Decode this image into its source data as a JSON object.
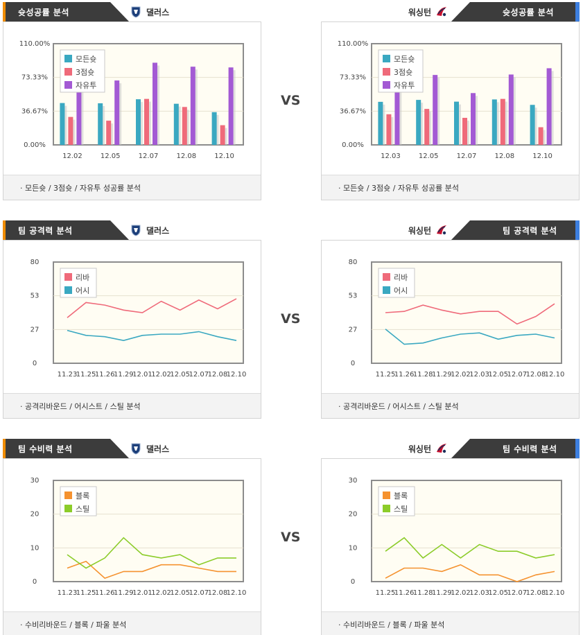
{
  "vs_label": "VS",
  "team_left": "댈러스",
  "team_right": "워싱턴",
  "colors": {
    "tab_bg": "#3c3c3c",
    "accent_left": "#f08c00",
    "accent_right": "#3d7fe0",
    "plot_bg": "#fffdf3",
    "all_shot": "#3aa8c1",
    "three_pt": "#ef6a7a",
    "free_throw": "#a35ad4",
    "rebound": "#ef6a7a",
    "assist": "#3aa8c1",
    "block": "#f5922f",
    "steal": "#8ccc2a"
  },
  "sections": [
    {
      "title": "슛성공률 분석",
      "caption": "·  모든슛 / 3점슛 / 자유투 성공률 분석",
      "charts": [
        {
          "chart_data": {
            "type": "bar",
            "categories": [
              "12.02",
              "12.05",
              "12.07",
              "12.08",
              "12.10"
            ],
            "yticks": [
              "0.00%",
              "36.67%",
              "73.33%",
              "110.00%"
            ],
            "ylim": [
              0,
              110
            ],
            "legend": "top-left",
            "series": [
              {
                "name": "모든슛",
                "color_key": "all_shot",
                "values": [
                  45.5,
                  45.2,
                  49.6,
                  44.7,
                  35.6
                ]
              },
              {
                "name": "3점슛",
                "color_key": "three_pt",
                "values": [
                  30.4,
                  26.3,
                  50.0,
                  41.2,
                  21.4
                ]
              },
              {
                "name": "자유투",
                "color_key": "free_throw",
                "values": [
                  62.5,
                  70.0,
                  89.3,
                  85.0,
                  84.2
                ]
              }
            ]
          }
        },
        {
          "chart_data": {
            "type": "bar",
            "categories": [
              "12.03",
              "12.05",
              "12.07",
              "12.08",
              "12.10"
            ],
            "yticks": [
              "0.00%",
              "36.67%",
              "73.33%",
              "110.00%"
            ],
            "ylim": [
              0,
              110
            ],
            "legend": "top-left",
            "series": [
              {
                "name": "모든슛",
                "color_key": "all_shot",
                "values": [
                  46.8,
                  48.9,
                  47.0,
                  49.4,
                  43.5
                ]
              },
              {
                "name": "3점슛",
                "color_key": "three_pt",
                "values": [
                  33.3,
                  39.1,
                  29.4,
                  50.0,
                  19.2
                ]
              },
              {
                "name": "자유투",
                "color_key": "free_throw",
                "values": [
                  62.5,
                  76.0,
                  56.3,
                  76.5,
                  83.3
                ]
              }
            ]
          }
        }
      ]
    },
    {
      "title": "팀 공격력 분석",
      "caption": "·  공격리바운드 / 어시스트 / 스틸 분석",
      "charts": [
        {
          "chart_data": {
            "type": "line",
            "categories": [
              "11.23",
              "11.25",
              "11.26",
              "11.29",
              "12.01",
              "12.02",
              "12.05",
              "12.07",
              "12.08",
              "12.10"
            ],
            "yticks": [
              "0",
              "27",
              "53",
              "80"
            ],
            "ylim": [
              0,
              80
            ],
            "legend": "top-left",
            "series": [
              {
                "name": "리바",
                "color_key": "rebound",
                "values": [
                  36,
                  48,
                  46,
                  42,
                  40,
                  49,
                  42,
                  50,
                  43,
                  51
                ]
              },
              {
                "name": "어시",
                "color_key": "assist",
                "values": [
                  26,
                  22,
                  21,
                  18,
                  22,
                  23,
                  23,
                  25,
                  21,
                  18
                ]
              }
            ]
          }
        },
        {
          "chart_data": {
            "type": "line",
            "categories": [
              "11.25",
              "11.26",
              "11.28",
              "11.29",
              "12.02",
              "12.03",
              "12.05",
              "12.07",
              "12.08",
              "12.10"
            ],
            "yticks": [
              "0",
              "27",
              "53",
              "80"
            ],
            "ylim": [
              0,
              80
            ],
            "legend": "top-left",
            "series": [
              {
                "name": "리바",
                "color_key": "rebound",
                "values": [
                  40,
                  41,
                  46,
                  42,
                  39,
                  41,
                  41,
                  31,
                  37,
                  47
                ]
              },
              {
                "name": "어시",
                "color_key": "assist",
                "values": [
                  27,
                  15,
                  16,
                  20,
                  23,
                  24,
                  19,
                  22,
                  23,
                  20
                ]
              }
            ]
          }
        }
      ]
    },
    {
      "title": "팀 수비력 분석",
      "caption": "·  수비리바운드 / 블록 / 파울 분석",
      "charts": [
        {
          "chart_data": {
            "type": "line",
            "categories": [
              "11.23",
              "11.25",
              "11.26",
              "11.29",
              "12.01",
              "12.02",
              "12.05",
              "12.07",
              "12.08",
              "12.10"
            ],
            "yticks": [
              "0",
              "10",
              "20",
              "30"
            ],
            "ylim": [
              0,
              30
            ],
            "legend": "top-left",
            "series": [
              {
                "name": "블록",
                "color_key": "block",
                "values": [
                  4,
                  6,
                  1,
                  3,
                  3,
                  5,
                  5,
                  4,
                  3,
                  3
                ]
              },
              {
                "name": "스틸",
                "color_key": "steal",
                "values": [
                  8,
                  4,
                  7,
                  13,
                  8,
                  7,
                  8,
                  5,
                  7,
                  7
                ]
              }
            ]
          }
        },
        {
          "chart_data": {
            "type": "line",
            "categories": [
              "11.25",
              "11.26",
              "11.28",
              "11.29",
              "12.02",
              "12.03",
              "12.05",
              "12.07",
              "12.08",
              "12.10"
            ],
            "yticks": [
              "0",
              "10",
              "20",
              "30"
            ],
            "ylim": [
              0,
              30
            ],
            "legend": "top-left",
            "series": [
              {
                "name": "블록",
                "color_key": "block",
                "values": [
                  1,
                  4,
                  4,
                  3,
                  5,
                  2,
                  2,
                  0,
                  2,
                  3
                ]
              },
              {
                "name": "스틸",
                "color_key": "steal",
                "values": [
                  9,
                  13,
                  7,
                  11,
                  7,
                  11,
                  9,
                  9,
                  7,
                  8
                ]
              }
            ]
          }
        }
      ]
    }
  ]
}
